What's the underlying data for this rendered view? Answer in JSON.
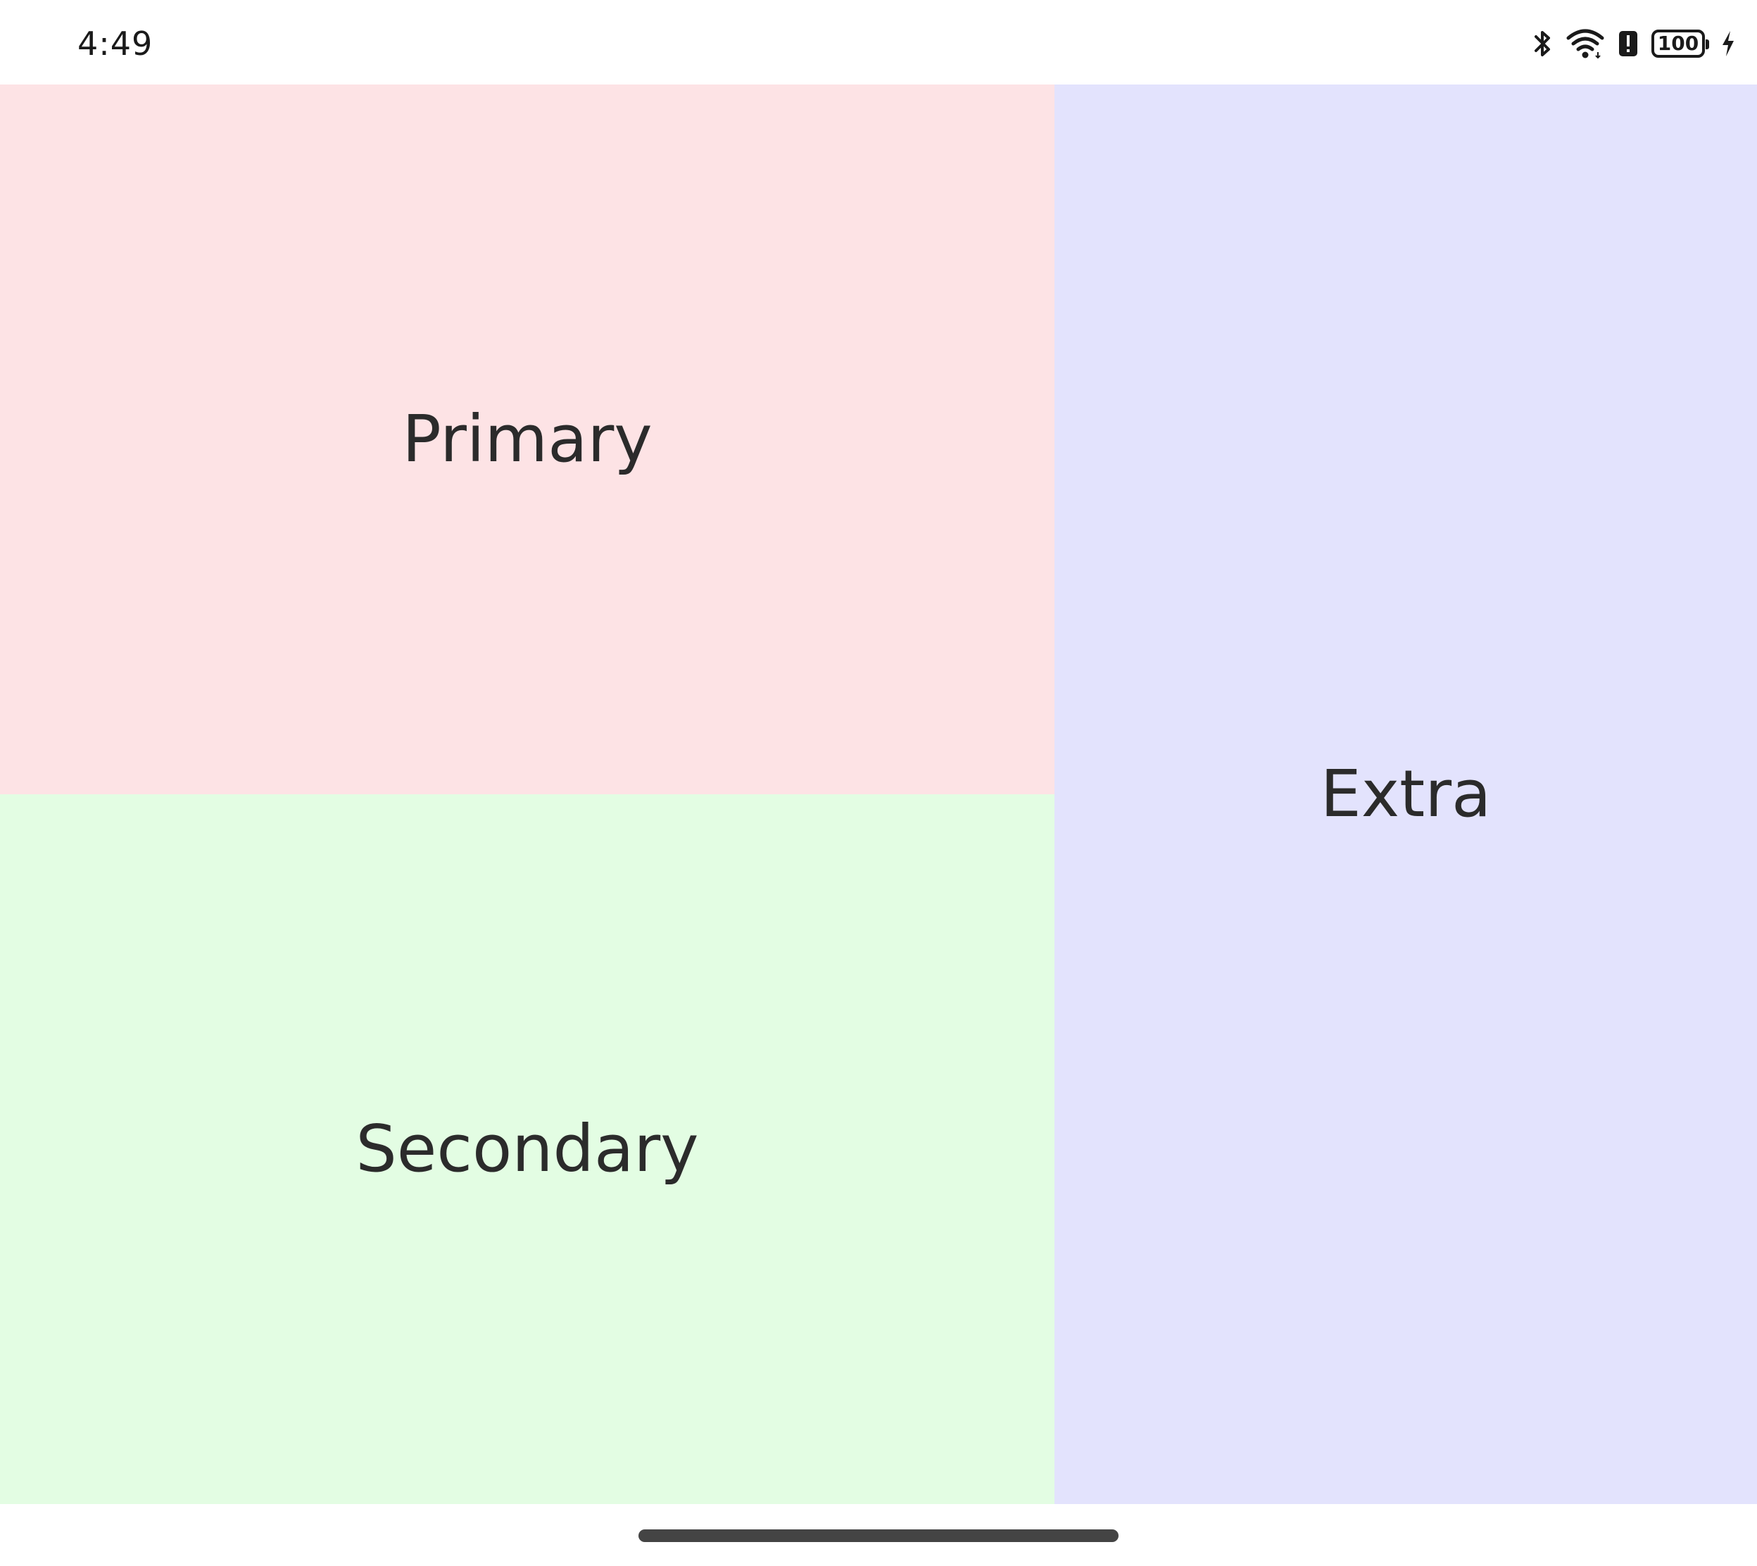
{
  "status_bar": {
    "time": "4:49",
    "battery_level": "100",
    "icons": [
      "bluetooth-icon",
      "wifi-icon",
      "battery-alert-icon",
      "battery-icon",
      "charging-bolt-icon"
    ]
  },
  "panes": {
    "primary": {
      "label": "Primary",
      "color": "#fde3e5"
    },
    "secondary": {
      "label": "Secondary",
      "color": "#e3fde3"
    },
    "extra": {
      "label": "Extra",
      "color": "#e3e3fd"
    }
  },
  "navigation": {
    "handle": "gesture-handle"
  }
}
